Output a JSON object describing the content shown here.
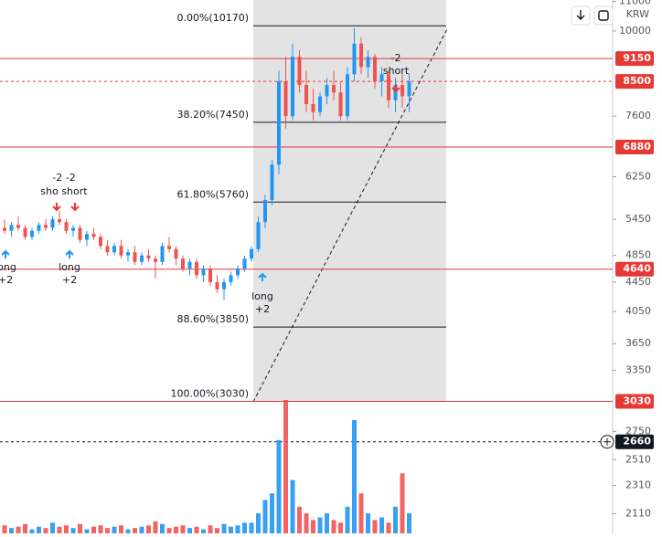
{
  "chart_data": {
    "type": "candlestick",
    "scale": "log",
    "currency": "KRW",
    "ylim": [
      1980,
      11050
    ],
    "yticks": [
      11000,
      10000,
      7600,
      6250,
      5450,
      4850,
      4450,
      4050,
      3650,
      3350,
      2750,
      2510,
      2310,
      2110
    ],
    "up_color": "#2196f3",
    "down_color": "#ef5350",
    "open": [
      5300,
      5250,
      5350,
      5300,
      5150,
      5250,
      5350,
      5300,
      5450,
      5400,
      5250,
      5300,
      5100,
      5200,
      5150,
      5000,
      4900,
      5000,
      4850,
      4900,
      4750,
      4850,
      4800,
      4750,
      5000,
      4950,
      4800,
      4650,
      4750,
      4550,
      4650,
      4450,
      4350,
      4450,
      4550,
      4650,
      4800,
      4950,
      5400,
      5800,
      6500,
      8500,
      7600,
      9200,
      8400,
      7900,
      7700,
      8100,
      8400,
      8200,
      7600,
      8700,
      9600,
      8900,
      9200,
      8500,
      8700,
      8000,
      8400,
      8100
    ],
    "high": [
      5450,
      5400,
      5500,
      5350,
      5300,
      5400,
      5450,
      5500,
      5600,
      5450,
      5350,
      5350,
      5250,
      5300,
      5200,
      5100,
      5050,
      5100,
      4950,
      5000,
      4900,
      4950,
      4850,
      5050,
      5150,
      5000,
      4850,
      4800,
      4800,
      4700,
      4700,
      4550,
      4500,
      4600,
      4700,
      4850,
      5000,
      5500,
      5900,
      6600,
      8800,
      9200,
      9600,
      9400,
      8800,
      8300,
      8200,
      8600,
      8800,
      8500,
      8900,
      10100,
      9800,
      9400,
      9300,
      8900,
      8800,
      8600,
      8700,
      8700
    ],
    "low": [
      5200,
      5150,
      5250,
      5100,
      5100,
      5200,
      5250,
      5250,
      5350,
      5200,
      5150,
      5050,
      5000,
      5100,
      4950,
      4850,
      4850,
      4800,
      4750,
      4700,
      4700,
      4750,
      4500,
      4700,
      4900,
      4700,
      4600,
      4550,
      4500,
      4450,
      4400,
      4300,
      4200,
      4400,
      4500,
      4600,
      4750,
      4900,
      5300,
      5700,
      6300,
      7300,
      7500,
      8200,
      7700,
      7500,
      7600,
      7900,
      8000,
      7500,
      7500,
      8500,
      8700,
      8600,
      8300,
      8100,
      7800,
      7700,
      7800,
      7700
    ],
    "close": [
      5250,
      5350,
      5300,
      5150,
      5250,
      5350,
      5300,
      5450,
      5400,
      5250,
      5300,
      5100,
      5200,
      5150,
      5000,
      4900,
      5000,
      4850,
      4900,
      4750,
      4850,
      4800,
      4750,
      5000,
      4950,
      4800,
      4650,
      4750,
      4550,
      4650,
      4450,
      4350,
      4450,
      4550,
      4650,
      4800,
      4950,
      5400,
      5800,
      6500,
      8500,
      7600,
      9200,
      8400,
      7900,
      7700,
      8100,
      8400,
      8200,
      7600,
      8700,
      9600,
      8900,
      9200,
      8500,
      8700,
      8000,
      8400,
      8100,
      8500
    ],
    "volume": [
      6,
      4,
      5,
      7,
      3,
      5,
      4,
      8,
      5,
      6,
      4,
      7,
      3,
      5,
      6,
      4,
      5,
      6,
      3,
      4,
      5,
      6,
      9,
      7,
      4,
      5,
      6,
      4,
      5,
      3,
      6,
      4,
      7,
      5,
      6,
      8,
      8,
      15,
      25,
      30,
      70,
      100,
      40,
      20,
      15,
      10,
      12,
      15,
      10,
      8,
      20,
      85,
      30,
      15,
      10,
      12,
      8,
      20,
      45,
      15
    ],
    "volume_lim": [
      0,
      100
    ],
    "fib_levels": [
      {
        "value": 10170,
        "label": "0.00%(10170)"
      },
      {
        "value": 7450,
        "label": "38.20%(7450)"
      },
      {
        "value": 5760,
        "label": "61.80%(5760)"
      },
      {
        "value": 3850,
        "label": "88.60%(3850)"
      },
      {
        "value": 3030,
        "label": "100.00%(3030)"
      }
    ],
    "price_lines": [
      {
        "value": 9150,
        "color": "#e53935"
      },
      {
        "value": 8500,
        "color": "#e53935"
      },
      {
        "value": 6880,
        "color": "#e53935"
      },
      {
        "value": 4640,
        "color": "#e53935"
      },
      {
        "value": 3030,
        "color": "#e53935"
      },
      {
        "value": 2660,
        "color": "#131722"
      }
    ],
    "annotations": [
      "-2",
      "short",
      "-2 -2",
      "sho short",
      "long",
      "+2",
      "long",
      "+2",
      "long",
      "+2"
    ]
  }
}
